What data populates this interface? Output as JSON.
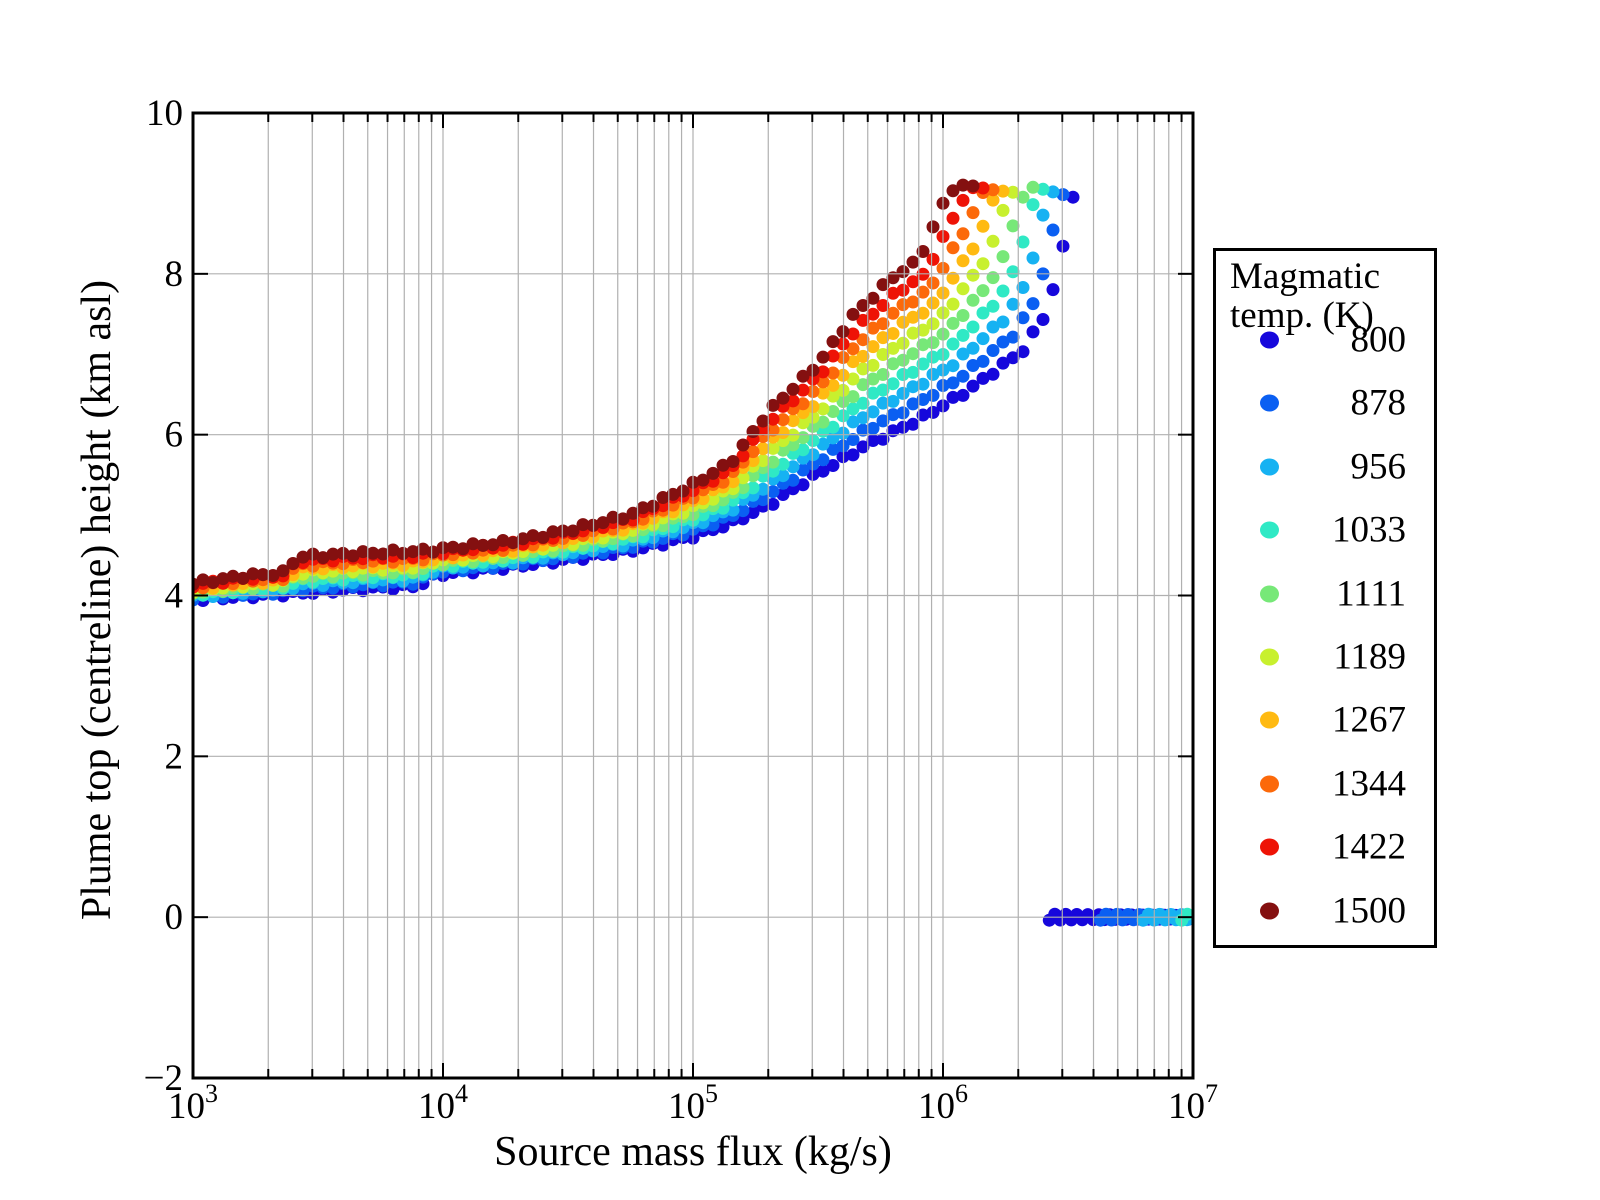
{
  "figure": {
    "background": "#ffffff",
    "frame_color": "#000000"
  },
  "axes": {
    "x_label": "Source mass flux (kg/s)",
    "y_label": "Plume top (centreline) height (km asl)",
    "x_scale": "log",
    "x_range_log": [
      3,
      7
    ],
    "y_range": [
      -2,
      10
    ],
    "x_tick_labels": [
      {
        "base": "10",
        "exp": "3"
      },
      {
        "base": "10",
        "exp": "4"
      },
      {
        "base": "10",
        "exp": "5"
      },
      {
        "base": "10",
        "exp": "6"
      },
      {
        "base": "10",
        "exp": "7"
      }
    ],
    "y_tick_values": [
      10,
      8,
      6,
      4,
      2,
      0,
      -2
    ],
    "y_tick_labels": [
      "10",
      "8",
      "6",
      "4",
      "2",
      "0",
      "−2"
    ],
    "grid_color": "#b0b0b0"
  },
  "legend": {
    "title_line1": "Magmatic",
    "title_line2": "temp. (K)",
    "entries": [
      {
        "label": "800",
        "color": "#1607dc"
      },
      {
        "label": "878",
        "color": "#0a5ff2"
      },
      {
        "label": "956",
        "color": "#16b2f2"
      },
      {
        "label": "1033",
        "color": "#2fe9c5"
      },
      {
        "label": "1111",
        "color": "#77e878"
      },
      {
        "label": "1189",
        "color": "#c8f02e"
      },
      {
        "label": "1267",
        "color": "#ffba12"
      },
      {
        "label": "1344",
        "color": "#fc690a"
      },
      {
        "label": "1422",
        "color": "#ee1306"
      },
      {
        "label": "1500",
        "color": "#841010"
      }
    ]
  },
  "chart_data": {
    "type": "scatter",
    "title": "",
    "xlabel": "Source mass flux (kg/s)",
    "ylabel": "Plume top (centreline) height (km asl)",
    "xscale": "log",
    "xlim": [
      1000,
      10000000
    ],
    "ylim": [
      -2,
      10
    ],
    "grid": true,
    "legend_position": "right",
    "marker_px": 13,
    "sample_step_log": 0.04,
    "collapse_sample_step_log": 0.022,
    "collapse_height_km": 0,
    "anchors_units": "[log10(source mass flux kg/s), plume top height km asl]",
    "anchors_800": [
      [
        3.0,
        3.95
      ],
      [
        3.2,
        3.99
      ],
      [
        3.36,
        4.02
      ],
      [
        3.42,
        4.03
      ],
      [
        3.65,
        4.08
      ],
      [
        3.9,
        4.12
      ],
      [
        3.97,
        4.26
      ],
      [
        4.25,
        4.35
      ],
      [
        4.5,
        4.45
      ],
      [
        4.75,
        4.56
      ],
      [
        5.0,
        4.74
      ],
      [
        5.15,
        4.9
      ],
      [
        5.3,
        5.12
      ],
      [
        5.5,
        5.52
      ],
      [
        5.7,
        5.88
      ],
      [
        5.9,
        6.18
      ],
      [
        6.1,
        6.55
      ],
      [
        6.32,
        7.05
      ],
      [
        6.42,
        7.55
      ],
      [
        6.49,
        8.45
      ],
      [
        6.52,
        8.98
      ],
      [
        6.55,
        9.03
      ]
    ],
    "anchors_1500": [
      [
        3.0,
        4.15
      ],
      [
        3.2,
        4.24
      ],
      [
        3.36,
        4.28
      ],
      [
        3.42,
        4.48
      ],
      [
        3.65,
        4.52
      ],
      [
        3.9,
        4.55
      ],
      [
        3.97,
        4.57
      ],
      [
        4.25,
        4.66
      ],
      [
        4.5,
        4.81
      ],
      [
        4.75,
        5.0
      ],
      [
        5.0,
        5.38
      ],
      [
        5.15,
        5.65
      ],
      [
        5.3,
        6.28
      ],
      [
        5.5,
        6.88
      ],
      [
        5.64,
        7.48
      ],
      [
        5.8,
        7.96
      ],
      [
        5.9,
        8.16
      ],
      [
        6.0,
        8.86
      ],
      [
        6.02,
        9.01
      ],
      [
        6.04,
        9.06
      ],
      [
        6.09,
        9.09
      ],
      [
        6.136,
        9.09
      ]
    ],
    "series": [
      {
        "name": "800",
        "temperature_K": 800,
        "color": "#1607dc",
        "t": 0.0,
        "collapse_log_range": [
          6.425,
          6.995
        ]
      },
      {
        "name": "878",
        "temperature_K": 878,
        "color": "#0a5ff2",
        "t": 0.1111,
        "collapse_log_range": [
          6.63,
          6.995
        ]
      },
      {
        "name": "956",
        "temperature_K": 956,
        "color": "#16b2f2",
        "t": 0.2222,
        "collapse_log_range": [
          6.8,
          6.995
        ]
      },
      {
        "name": "1033",
        "temperature_K": 1033,
        "color": "#2fe9c5",
        "t": 0.3333,
        "collapse_log_range": [
          6.955,
          6.995
        ]
      },
      {
        "name": "1111",
        "temperature_K": 1111,
        "color": "#77e878",
        "t": 0.4444,
        "collapse_log_range": null
      },
      {
        "name": "1189",
        "temperature_K": 1189,
        "color": "#c8f02e",
        "t": 0.5556,
        "collapse_log_range": null
      },
      {
        "name": "1267",
        "temperature_K": 1267,
        "color": "#ffba12",
        "t": 0.6667,
        "collapse_log_range": null
      },
      {
        "name": "1344",
        "temperature_K": 1344,
        "color": "#fc690a",
        "t": 0.7778,
        "collapse_log_range": null
      },
      {
        "name": "1422",
        "temperature_K": 1422,
        "color": "#ee1306",
        "t": 0.8889,
        "collapse_log_range": null
      },
      {
        "name": "1500",
        "temperature_K": 1500,
        "color": "#841010",
        "t": 1.0,
        "collapse_log_range": null
      }
    ]
  }
}
